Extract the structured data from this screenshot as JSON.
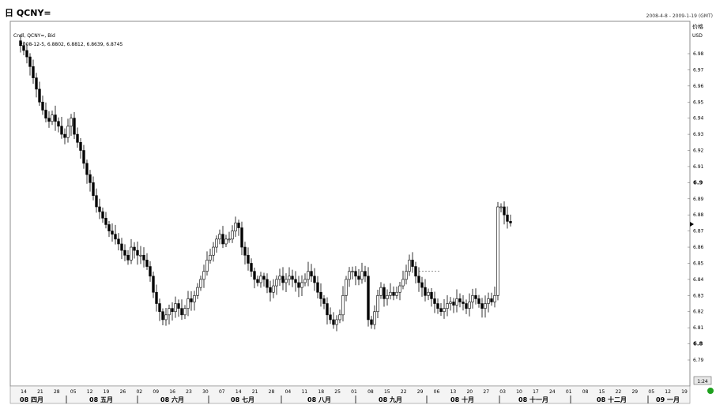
{
  "window": {
    "title": "日 QCNY=",
    "date_range": "2008-4-8 - 2009-1-19 (GMT)",
    "legend_line1": "Cndl, QCNY=, Bid",
    "legend_line2": "2008-12-5, 6.8802, 6.8812, 6.8639, 6.8745",
    "price_label": "价格",
    "currency_label": "USD",
    "corner_badge": "1:24"
  },
  "chart_data": {
    "type": "candlestick",
    "symbol": "QCNY=",
    "series": "Bid",
    "y_ticks": [
      6.79,
      6.8,
      6.81,
      6.82,
      6.83,
      6.84,
      6.85,
      6.86,
      6.87,
      6.88,
      6.89,
      6.9,
      6.91,
      6.92,
      6.93,
      6.94,
      6.95,
      6.96,
      6.97,
      6.98
    ],
    "y_tick_labels": [
      "6.79",
      "6.8",
      "6.81",
      "6.82",
      "6.83",
      "6.84",
      "6.85",
      "6.86",
      "6.87",
      "6.88",
      "6.89",
      "6.9",
      "6.91",
      "6.92",
      "6.93",
      "6.94",
      "6.95",
      "6.96",
      "6.97",
      "6.98"
    ],
    "ylim": [
      6.78,
      6.99
    ],
    "x_day_labels": [
      "14",
      "21",
      "28",
      "05",
      "12",
      "19",
      "26",
      "02",
      "09",
      "16",
      "23",
      "30",
      "07",
      "14",
      "21",
      "28",
      "04",
      "11",
      "18",
      "25",
      "01",
      "08",
      "15",
      "22",
      "29",
      "06",
      "13",
      "20",
      "27",
      "03",
      "10",
      "17",
      "24",
      "01",
      "08",
      "15",
      "22",
      "29",
      "05",
      "12",
      "19"
    ],
    "x_month_labels": [
      "08 四月",
      "08 五月",
      "08 六月",
      "08 七月",
      "08 八月",
      "08 九月",
      "08 十月",
      "08 十一月",
      "08 十二月",
      "09 一月"
    ],
    "last_candle": {
      "date": "2008-12-5",
      "open": 6.8802,
      "high": 6.8812,
      "low": 6.8639,
      "close": 6.8745
    },
    "close_path": [
      6.985,
      6.982,
      6.978,
      6.972,
      6.965,
      6.958,
      6.95,
      6.945,
      6.94,
      6.938,
      6.942,
      6.938,
      6.935,
      6.93,
      6.928,
      6.935,
      6.94,
      6.93,
      6.925,
      6.92,
      6.912,
      6.905,
      6.9,
      6.892,
      6.885,
      6.882,
      6.878,
      6.874,
      6.87,
      6.868,
      6.865,
      6.862,
      6.858,
      6.855,
      6.852,
      6.86,
      6.858,
      6.855,
      6.855,
      6.852,
      6.848,
      6.842,
      6.832,
      6.825,
      6.82,
      6.815,
      6.818,
      6.822,
      6.82,
      6.825,
      6.822,
      6.818,
      6.822,
      6.828,
      6.826,
      6.83,
      6.835,
      6.84,
      6.845,
      6.852,
      6.855,
      6.86,
      6.865,
      6.868,
      6.862,
      6.865,
      6.865,
      6.87,
      6.875,
      6.872,
      6.86,
      6.855,
      6.85,
      6.845,
      6.84,
      6.838,
      6.842,
      6.84,
      6.835,
      6.832,
      6.836,
      6.84,
      6.842,
      6.838,
      6.84,
      6.842,
      6.84,
      6.838,
      6.835,
      6.838,
      6.84,
      6.845,
      6.842,
      6.838,
      6.832,
      6.828,
      6.825,
      6.818,
      6.815,
      6.812,
      6.815,
      6.818,
      6.83,
      6.84,
      6.845,
      6.845,
      6.842,
      6.84,
      6.845,
      6.842,
      6.815,
      6.812,
      6.82,
      6.83,
      6.835,
      6.828,
      6.83,
      6.832,
      6.83,
      6.832,
      6.836,
      6.84,
      6.845,
      6.852,
      6.848,
      6.842,
      6.838,
      6.835,
      6.83,
      6.832,
      6.828,
      6.825,
      6.822,
      6.82,
      6.822,
      6.825,
      6.826,
      6.824,
      6.828,
      6.826,
      6.825,
      6.822,
      6.826,
      6.83,
      6.828,
      6.825,
      6.822,
      6.825,
      6.828,
      6.826,
      6.83,
      6.885,
      6.885,
      6.88,
      6.876,
      6.875
    ]
  }
}
